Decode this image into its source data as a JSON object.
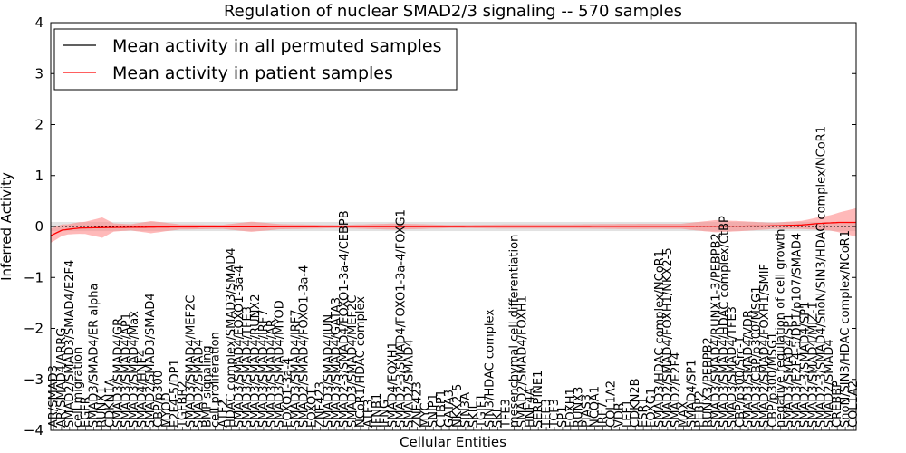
{
  "chart_data": {
    "type": "line",
    "title": "Regulation of nuclear SMAD2/3 signaling -- 570 samples",
    "xlabel": "Cellular Entities",
    "ylabel": "Inferred Activity",
    "ylim": [
      -4,
      4
    ],
    "yticks": [
      "4",
      "3",
      "2",
      "1",
      "0",
      "−1",
      "−2",
      "−3",
      "−4"
    ],
    "legend_position": "top-left",
    "colors": {
      "permuted": "#000000",
      "patient": "#ff0000",
      "patient_band": "#ff7f7f",
      "permuted_band": "#bfbfbf"
    },
    "series": [
      {
        "name": "Mean activity in all permuted samples",
        "values": "flat at 0 (dotted black)"
      },
      {
        "name": "Mean activity in patient samples",
        "values": "approximately 0 with variance band"
      }
    ],
    "patient_mean_profile": [
      [
        0,
        -0.18
      ],
      [
        4,
        -0.07
      ],
      [
        10,
        -0.03
      ],
      [
        20,
        -0.02
      ],
      [
        40,
        -0.01
      ],
      [
        70,
        -0.005
      ],
      [
        100,
        -0.002
      ],
      [
        180,
        0
      ],
      [
        230,
        0.005
      ],
      [
        250,
        0.01
      ],
      [
        262,
        0.03
      ],
      [
        268,
        0.06
      ],
      [
        275,
        0.08
      ],
      [
        281,
        0.08
      ]
    ],
    "patient_band_halfwidth": [
      [
        0,
        0.14
      ],
      [
        6,
        0.1
      ],
      [
        12,
        0.12
      ],
      [
        18,
        0.2
      ],
      [
        22,
        0.08
      ],
      [
        28,
        0.06
      ],
      [
        35,
        0.12
      ],
      [
        45,
        0.05
      ],
      [
        60,
        0.04
      ],
      [
        70,
        0.1
      ],
      [
        80,
        0.05
      ],
      [
        100,
        0.03
      ],
      [
        120,
        0.06
      ],
      [
        140,
        0.03
      ],
      [
        160,
        0.04
      ],
      [
        180,
        0.04
      ],
      [
        200,
        0.05
      ],
      [
        220,
        0.05
      ],
      [
        232,
        0.12
      ],
      [
        240,
        0.1
      ],
      [
        252,
        0.06
      ],
      [
        262,
        0.08
      ],
      [
        272,
        0.15
      ],
      [
        281,
        0.28
      ]
    ],
    "permuted_band_halfwidth": 0.09,
    "categories": [
      "AR/SMAD3",
      "AR/SMAD4/ARRG",
      "SMAD2/SMAD3/SMAD4/E2F4",
      "cell migration",
      "EGFR",
      "SMAD3/SMAD4/ER alpha",
      "RUNX1",
      "CDKN1A",
      "SMAD3/SMAD4/GR",
      "SMAD3/SMAD4/AP1",
      "SMAD3/SMAD4/Max",
      "SMAD4/HNF4",
      "SMAD2/SMAD3/SMAD4",
      "CBP/p300",
      "MYOD",
      "E2F4-5/DP1",
      "TGFBR2",
      "SMAD3/SMAD4/MEF2C",
      "SMAD2/SMAD4",
      "BMP signaling",
      "cell proliferation",
      "ATF2",
      "HDAC complex/SMAD3/SMAD4",
      "SMAD3/SMAD4/FOXO1-3a-4",
      "SMAD3/SMAD4/TFE3",
      "SMAD3/SMAD4/RUNX2",
      "SMAD3/SMAD4/IRF7",
      "SMAD3/SMAD4/AR",
      "SMAD3/SMAD4/MYOD",
      "FOXO1-3a-4",
      "SMAD3/SMAD4/IRF7",
      "SMAD2/SMAD4/FOXO1-3a-4",
      "FOXO1",
      "ZNF423",
      "SMAD3/SMAD4/JUN",
      "SMAD3/SMAD4/GATA3",
      "SMAD2-3/SMAD4/FOXO1-3a-4/CEBPB",
      "SMAD3/SMAD4/MEF2C",
      "NCoR1/HDAC complex",
      "ATF3",
      "IFNB1",
      "IFNG",
      "SMAD4/FOXH1",
      "SMAD2-3/SMAD4/FOXO1-3a-4/FOXG1",
      "SMAD2/SMAD4",
      "ZNF423",
      "MYC",
      "SNIP1",
      "CTBP1",
      "GATA3",
      "NKX2-5",
      "SIN3A",
      "SKIL",
      "TGIF1",
      "SIN3/HDAC complex",
      "SKI",
      "TFE3",
      "mesenchymal cell differentiation",
      "SMAD2/SMAD4/FOXH1",
      "HNF4A",
      "SERPINE1",
      "TFE3",
      "TCF3",
      "SP1",
      "FOXH1",
      "RUNX3",
      "PIAS3",
      "NCOA1",
      "IRF7",
      "COL1A2",
      "VDR",
      "LEF1",
      "CDKN2B",
      "ESR1",
      "FOXG1",
      "SMAD3/HDAC complex/NCoR1",
      "SMAD2/SMAD4/FOXH1/NKX2-5",
      "SMAD2/E2F4",
      "MAX",
      "SMAD4/SP1",
      "PEBP2",
      "RUNX3/PEBPB2",
      "SMAD3/SMAD4/RUNX1-3/PEBPB2",
      "SMAD3/SMAD4/HDAC complex/CtBP",
      "SMAD3/SMAD4/TFE3",
      "CBP/p300/Src-1",
      "SMAD3/SMAD4/VDR",
      "SMAD3/CBP/p300/MSG1",
      "SMAD2/SMAD4/FOXH1/SMIF",
      "CBP/p300/MSG1",
      "negative regulation of cell growth",
      "SMAD3/SMAD4/SP1",
      "SMAD3/E2F4-5/DP1/p107/SMAD4",
      "SMAD2-3/SMAD4/SP1",
      "SMAD3/SMAD4/MIZ-1",
      "SMAD2-3/SMAD4/SnoN/SIN3/HDAC complex/NCoR1",
      "SMAD2/SMAD4",
      "CREBBP",
      "SnoN/SIN3/HDAC complex/NCoR1",
      "COL1A2"
    ]
  },
  "axes_labels": {
    "xlabel_text": "Cellular Entities",
    "ylabel_text": "Inferred Activity"
  }
}
